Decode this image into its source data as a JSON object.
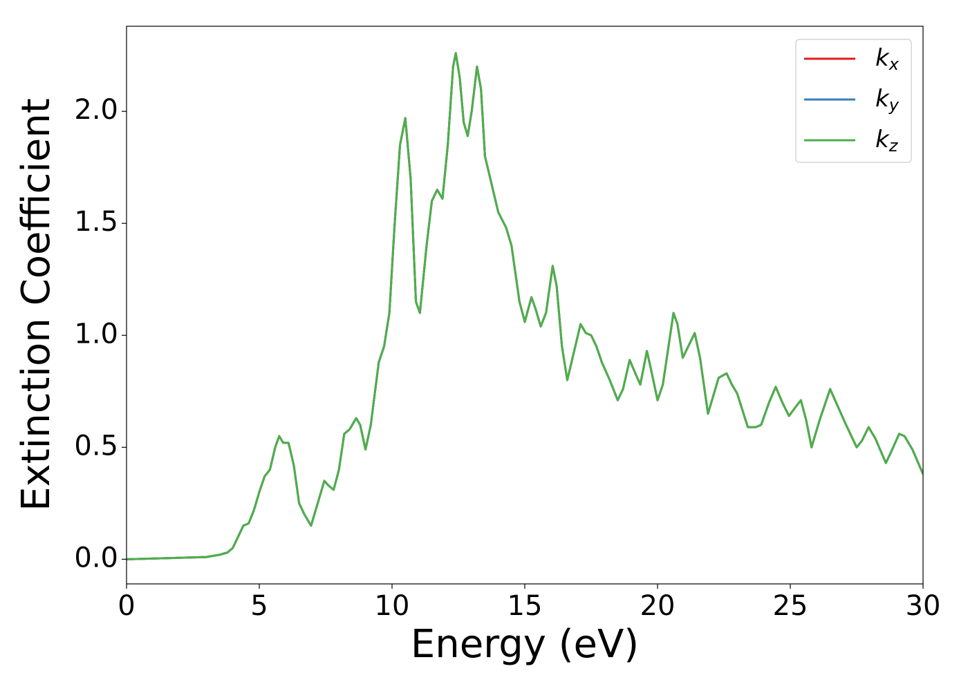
{
  "chart_data": {
    "type": "line",
    "xlabel": "Energy (eV)",
    "ylabel": "Extinction Coefficient",
    "xlim": [
      0,
      30
    ],
    "ylim": [
      -0.11,
      2.38
    ],
    "xticks": [
      0,
      5,
      10,
      15,
      20,
      25,
      30
    ],
    "yticks": [
      {
        "value": 0,
        "label": "0.0"
      },
      0.5,
      {
        "value": 1,
        "label": "1.0"
      },
      1.5,
      {
        "value": 2,
        "label": "2.0"
      }
    ],
    "legend": "upper right",
    "x": [
      0,
      3,
      3.5,
      3.8,
      4.0,
      4.2,
      4.4,
      4.6,
      4.8,
      5.0,
      5.2,
      5.4,
      5.6,
      5.75,
      5.9,
      6.1,
      6.3,
      6.5,
      6.7,
      6.95,
      7.2,
      7.45,
      7.6,
      7.8,
      8.0,
      8.2,
      8.4,
      8.65,
      8.8,
      9.0,
      9.2,
      9.5,
      9.7,
      9.9,
      10.1,
      10.3,
      10.5,
      10.7,
      10.9,
      11.05,
      11.3,
      11.5,
      11.7,
      11.9,
      12.1,
      12.3,
      12.4,
      12.55,
      12.7,
      12.85,
      13.0,
      13.2,
      13.35,
      13.5,
      13.8,
      14.0,
      14.3,
      14.5,
      14.8,
      15.0,
      15.25,
      15.4,
      15.6,
      15.8,
      16.05,
      16.2,
      16.4,
      16.6,
      16.8,
      17.1,
      17.3,
      17.5,
      17.7,
      17.9,
      18.2,
      18.5,
      18.7,
      18.95,
      19.2,
      19.35,
      19.6,
      19.75,
      20.0,
      20.2,
      20.6,
      20.75,
      20.95,
      21.4,
      21.6,
      21.9,
      22.3,
      22.6,
      22.8,
      23.0,
      23.4,
      23.7,
      23.9,
      24.2,
      24.45,
      24.7,
      24.95,
      25.2,
      25.4,
      25.6,
      25.8,
      26.1,
      26.5,
      26.8,
      27.1,
      27.5,
      27.7,
      27.95,
      28.2,
      28.6,
      28.8,
      29.1,
      29.3,
      29.6,
      30
    ],
    "series": [
      {
        "name": "kx",
        "color": "#e41a1c",
        "values": [
          0,
          0.01,
          0.02,
          0.03,
          0.05,
          0.1,
          0.15,
          0.16,
          0.22,
          0.3,
          0.37,
          0.4,
          0.5,
          0.55,
          0.52,
          0.52,
          0.42,
          0.25,
          0.2,
          0.15,
          0.25,
          0.35,
          0.33,
          0.31,
          0.4,
          0.56,
          0.58,
          0.63,
          0.6,
          0.49,
          0.6,
          0.88,
          0.95,
          1.1,
          1.5,
          1.85,
          1.97,
          1.7,
          1.15,
          1.1,
          1.4,
          1.6,
          1.65,
          1.61,
          1.85,
          2.2,
          2.26,
          2.15,
          1.95,
          1.89,
          2.0,
          2.2,
          2.1,
          1.8,
          1.65,
          1.55,
          1.48,
          1.4,
          1.15,
          1.06,
          1.17,
          1.12,
          1.04,
          1.1,
          1.31,
          1.22,
          0.95,
          0.8,
          0.9,
          1.05,
          1.01,
          1.0,
          0.95,
          0.88,
          0.8,
          0.71,
          0.76,
          0.89,
          0.82,
          0.78,
          0.93,
          0.85,
          0.71,
          0.78,
          1.1,
          1.05,
          0.9,
          1.01,
          0.9,
          0.65,
          0.81,
          0.83,
          0.78,
          0.74,
          0.59,
          0.59,
          0.6,
          0.7,
          0.77,
          0.7,
          0.64,
          0.68,
          0.71,
          0.62,
          0.5,
          0.62,
          0.76,
          0.68,
          0.6,
          0.5,
          0.53,
          0.59,
          0.54,
          0.43,
          0.48,
          0.56,
          0.55,
          0.49,
          0.38
        ]
      },
      {
        "name": "ky",
        "color": "#377eb8",
        "values": [
          0,
          0.01,
          0.02,
          0.03,
          0.05,
          0.1,
          0.15,
          0.16,
          0.22,
          0.3,
          0.37,
          0.4,
          0.5,
          0.55,
          0.52,
          0.52,
          0.42,
          0.25,
          0.2,
          0.15,
          0.25,
          0.35,
          0.33,
          0.31,
          0.4,
          0.56,
          0.58,
          0.63,
          0.6,
          0.49,
          0.6,
          0.88,
          0.95,
          1.1,
          1.5,
          1.85,
          1.97,
          1.7,
          1.15,
          1.1,
          1.4,
          1.6,
          1.65,
          1.61,
          1.85,
          2.2,
          2.26,
          2.15,
          1.95,
          1.89,
          2.0,
          2.2,
          2.1,
          1.8,
          1.65,
          1.55,
          1.48,
          1.4,
          1.15,
          1.06,
          1.17,
          1.12,
          1.04,
          1.1,
          1.31,
          1.22,
          0.95,
          0.8,
          0.9,
          1.05,
          1.01,
          1.0,
          0.95,
          0.88,
          0.8,
          0.71,
          0.76,
          0.89,
          0.82,
          0.78,
          0.93,
          0.85,
          0.71,
          0.78,
          1.1,
          1.05,
          0.9,
          1.01,
          0.9,
          0.65,
          0.81,
          0.83,
          0.78,
          0.74,
          0.59,
          0.59,
          0.6,
          0.7,
          0.77,
          0.7,
          0.64,
          0.68,
          0.71,
          0.62,
          0.5,
          0.62,
          0.76,
          0.68,
          0.6,
          0.5,
          0.53,
          0.59,
          0.54,
          0.43,
          0.48,
          0.56,
          0.55,
          0.49,
          0.38
        ]
      },
      {
        "name": "kz",
        "color": "#4daf4a",
        "values": [
          0,
          0.01,
          0.02,
          0.03,
          0.05,
          0.1,
          0.15,
          0.16,
          0.22,
          0.3,
          0.37,
          0.4,
          0.5,
          0.55,
          0.52,
          0.52,
          0.42,
          0.25,
          0.2,
          0.15,
          0.25,
          0.35,
          0.33,
          0.31,
          0.4,
          0.56,
          0.58,
          0.63,
          0.6,
          0.49,
          0.6,
          0.88,
          0.95,
          1.1,
          1.5,
          1.85,
          1.97,
          1.7,
          1.15,
          1.1,
          1.4,
          1.6,
          1.65,
          1.61,
          1.85,
          2.2,
          2.26,
          2.15,
          1.95,
          1.89,
          2.0,
          2.2,
          2.1,
          1.8,
          1.65,
          1.55,
          1.48,
          1.4,
          1.15,
          1.06,
          1.17,
          1.12,
          1.04,
          1.1,
          1.31,
          1.22,
          0.95,
          0.8,
          0.9,
          1.05,
          1.01,
          1.0,
          0.95,
          0.88,
          0.8,
          0.71,
          0.76,
          0.89,
          0.82,
          0.78,
          0.93,
          0.85,
          0.71,
          0.78,
          1.1,
          1.05,
          0.9,
          1.01,
          0.9,
          0.65,
          0.81,
          0.83,
          0.78,
          0.74,
          0.59,
          0.59,
          0.6,
          0.7,
          0.77,
          0.7,
          0.64,
          0.68,
          0.71,
          0.62,
          0.5,
          0.62,
          0.76,
          0.68,
          0.6,
          0.5,
          0.53,
          0.59,
          0.54,
          0.43,
          0.48,
          0.56,
          0.55,
          0.49,
          0.38
        ]
      }
    ]
  }
}
